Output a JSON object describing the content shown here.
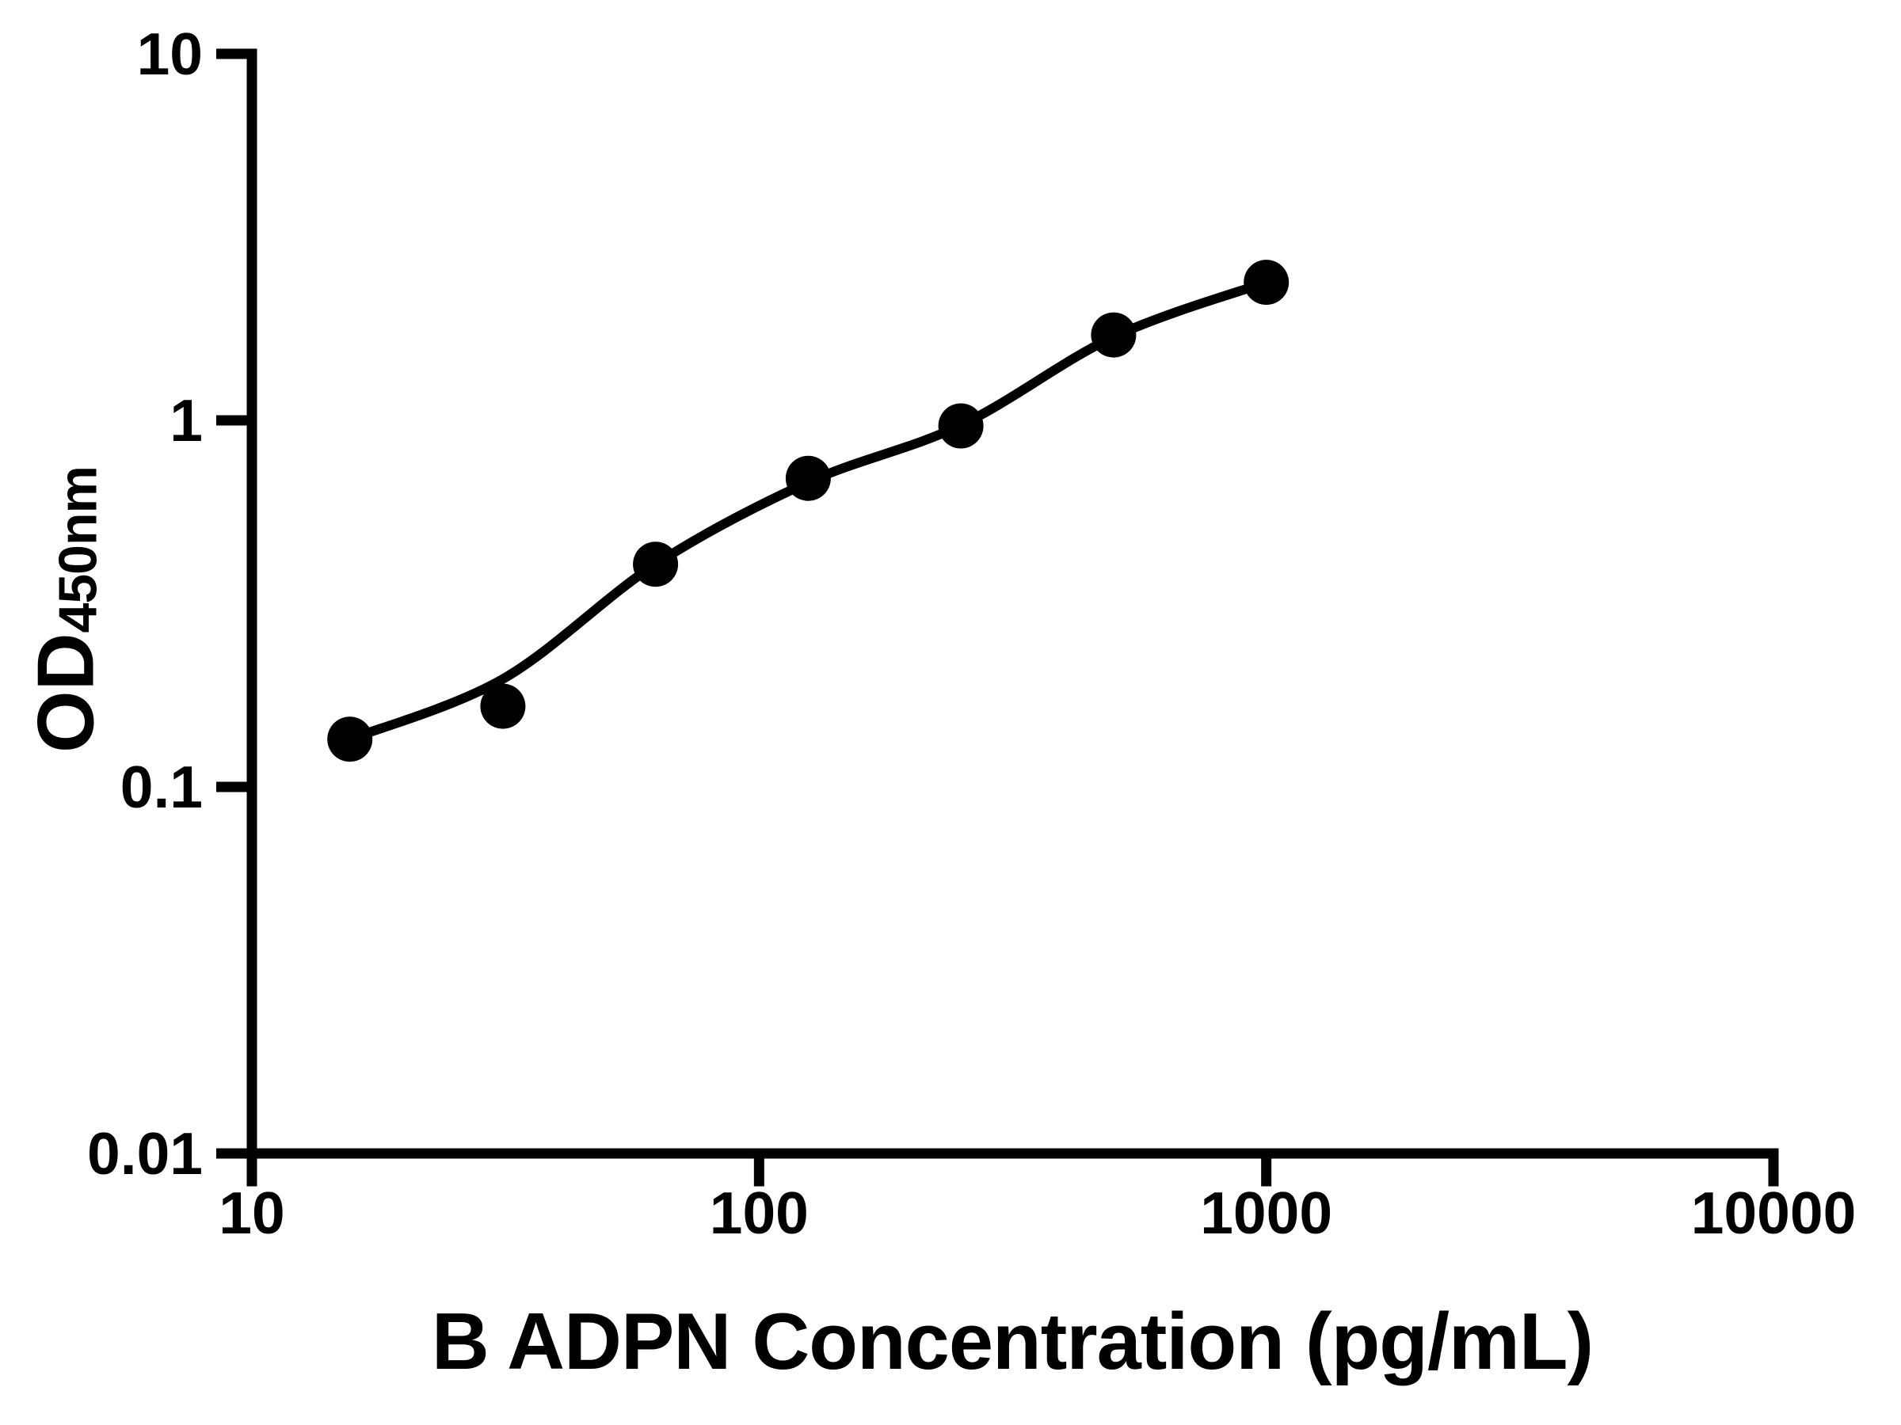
{
  "figure": {
    "background_color": "#ffffff",
    "foreground_color": "#000000"
  },
  "chart_data": {
    "type": "scatter",
    "title": "",
    "xlabel": "B ADPN Concentration (pg/mL)",
    "ylabel": {
      "base": "OD",
      "subscript": "450nm"
    },
    "x_scale": "log",
    "y_scale": "log",
    "xlim": [
      10,
      10000
    ],
    "ylim": [
      0.01,
      10
    ],
    "grid": false,
    "legend": null,
    "x_ticks": [
      {
        "value": 10,
        "label": "10"
      },
      {
        "value": 100,
        "label": "100"
      },
      {
        "value": 1000,
        "label": "1000"
      },
      {
        "value": 10000,
        "label": "10000"
      }
    ],
    "y_ticks": [
      {
        "value": 10,
        "label": "10"
      },
      {
        "value": 1,
        "label": "1"
      },
      {
        "value": 0.1,
        "label": "0.1"
      },
      {
        "value": 0.01,
        "label": "0.01"
      }
    ],
    "series": [
      {
        "name": "standard-points",
        "marker": "circle",
        "color": "#000000",
        "x": [
          15.6,
          31.25,
          62.5,
          125,
          250,
          500,
          1000
        ],
        "y": [
          0.135,
          0.166,
          0.405,
          0.695,
          0.966,
          1.71,
          2.38
        ]
      }
    ],
    "fit_curve": {
      "name": "4pl-fit-line",
      "color": "#000000",
      "x": [
        15.6,
        31.25,
        62.5,
        125,
        250,
        500,
        1000
      ],
      "y": [
        0.135,
        0.197,
        0.405,
        0.678,
        0.97,
        1.69,
        2.38
      ]
    }
  }
}
